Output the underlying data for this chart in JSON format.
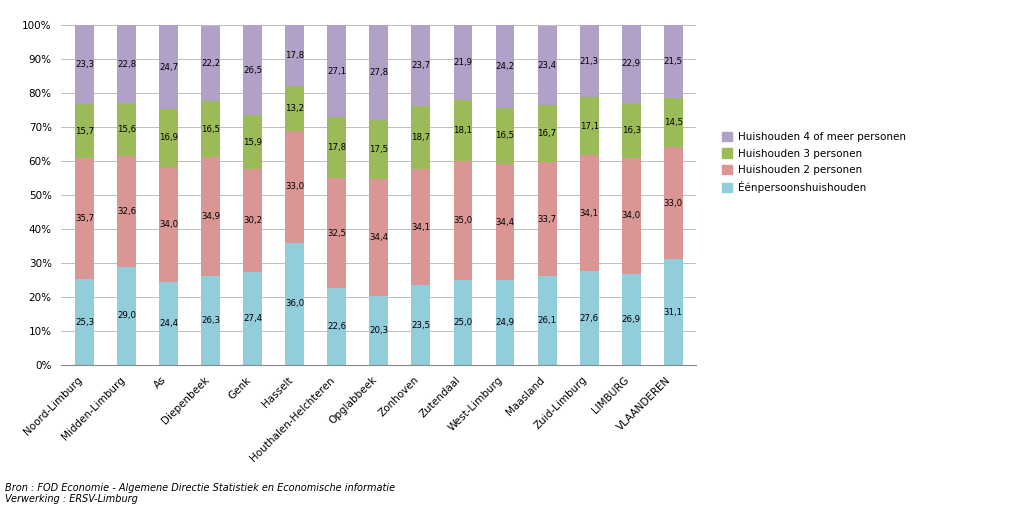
{
  "categories": [
    "Noord-Limburg",
    "Midden-Limburg",
    "As",
    "Diepenbeek",
    "Genk",
    "Hasselt",
    "Houthalen-Helchteren",
    "Opglabbeek",
    "Zonhoven",
    "Zutendaal",
    "West-Limburg",
    "Maasland",
    "Zuid-Limburg",
    "LIMBURG",
    "VLAANDEREN"
  ],
  "een_persoons": [
    25.3,
    29.0,
    24.4,
    26.3,
    27.4,
    36.0,
    22.6,
    20.3,
    23.5,
    25.0,
    24.9,
    26.1,
    27.6,
    26.9,
    31.1
  ],
  "twee_personen": [
    35.7,
    32.6,
    34.0,
    34.9,
    30.2,
    33.0,
    32.5,
    34.4,
    34.1,
    35.0,
    34.4,
    33.7,
    34.1,
    34.0,
    33.0
  ],
  "drie_personen": [
    15.7,
    15.6,
    16.9,
    16.5,
    15.9,
    13.2,
    17.8,
    17.5,
    18.7,
    18.1,
    16.5,
    16.7,
    17.1,
    16.3,
    14.5
  ],
  "vier_meer_personen": [
    23.3,
    22.8,
    24.7,
    22.2,
    26.5,
    17.8,
    27.1,
    27.8,
    23.7,
    21.9,
    24.2,
    23.4,
    21.3,
    22.9,
    21.5
  ],
  "colors": {
    "een_persoons": "#92CDDC",
    "twee_personen": "#DA9694",
    "drie_personen": "#9BBB59",
    "vier_meer_personen": "#B1A0C7"
  },
  "legend_labels": [
    "Huishouden 4 of meer personen",
    "Huishouden 3 personen",
    "Huishouden 2 personen",
    "Éénpersoonshuishouden"
  ],
  "source_text": "Bron : FOD Economie - Algemene Directie Statistiek en Economische informatie\nVerwerking : ERSV-Limburg",
  "bar_width": 0.45,
  "background_color": "#FFFFFF",
  "grid_color": "#BFBFBF",
  "label_fontsize": 6.2,
  "tick_fontsize": 7.5
}
